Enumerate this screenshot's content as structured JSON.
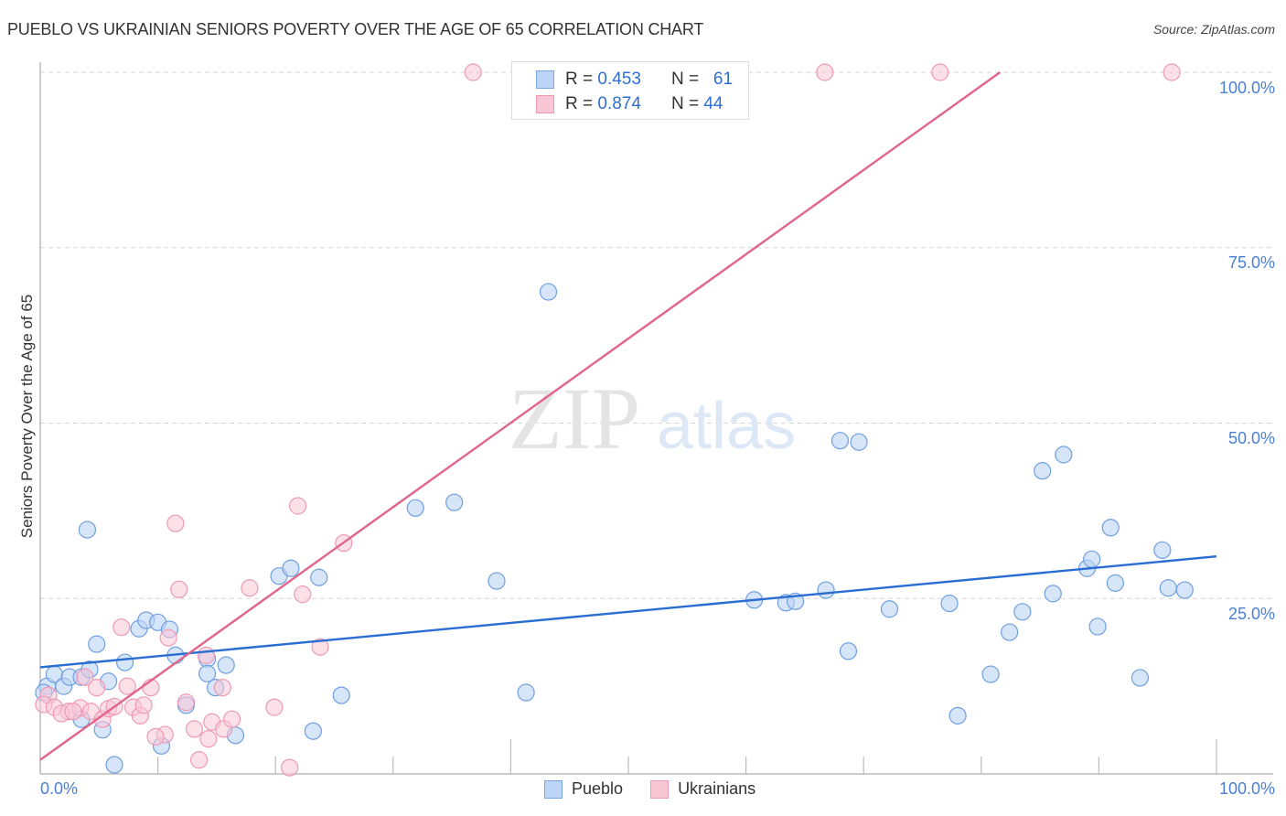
{
  "header": {
    "title": "PUEBLO VS UKRAINIAN SENIORS POVERTY OVER THE AGE OF 65 CORRELATION CHART",
    "source": "Source: ZipAtlas.com"
  },
  "watermark": {
    "zip": "ZIP",
    "atlas": "atlas"
  },
  "legend_top": {
    "rows": [
      {
        "series": "Pueblo",
        "r_label": "R =",
        "r_value": "0.453",
        "n_label": "N =",
        "n_value": "61",
        "color": "#bcd4f5"
      },
      {
        "series": "Ukrainians",
        "r_label": "R =",
        "r_value": "0.874",
        "n_label": "N =",
        "n_value": "44",
        "color": "#f9c6d6"
      }
    ]
  },
  "legend_bottom": {
    "items": [
      {
        "label": "Pueblo",
        "color": "#bcd4f5"
      },
      {
        "label": "Ukrainians",
        "color": "#f9c6d6"
      }
    ]
  },
  "axes": {
    "ylabel": "Seniors Poverty Over the Age of 65",
    "y_ticks": [
      "100.0%",
      "75.0%",
      "50.0%",
      "25.0%"
    ],
    "x_ticks": [
      "0.0%",
      "100.0%"
    ]
  },
  "colors": {
    "pueblo_fill": "#bcd4f5",
    "pueblo_stroke": "#6f9fe0",
    "pueblo_line": "#2a6dd2",
    "ukrainians_fill": "#f9c6d6",
    "ukrainians_stroke": "#ee9ab5",
    "ukrainians_line": "#e0648c",
    "tick_label": "#4a7fd4"
  },
  "chart_data": {
    "type": "scatter",
    "title": "PUEBLO VS UKRAINIAN SENIORS POVERTY OVER THE AGE OF 65 CORRELATION CHART",
    "xlabel": "",
    "ylabel": "Seniors Poverty Over the Age of 65",
    "xlim": [
      0,
      100
    ],
    "ylim": [
      0,
      100
    ],
    "x_tick_labels": [
      "0.0%",
      "100.0%"
    ],
    "y_tick_labels": [
      "25.0%",
      "50.0%",
      "75.0%",
      "100.0%"
    ],
    "grid": "horizontal dashed at 25/50/75/100",
    "legend_position": "top-center and bottom-center",
    "series": [
      {
        "name": "Pueblo",
        "r": 0.453,
        "n": 61,
        "trend": {
          "x": [
            0,
            100
          ],
          "y": [
            15.2,
            31.0
          ]
        },
        "points": [
          [
            4.0,
            34.8
          ],
          [
            4.8,
            18.5
          ],
          [
            0.6,
            12.5
          ],
          [
            1.2,
            14.2
          ],
          [
            2.0,
            12.5
          ],
          [
            2.5,
            13.8
          ],
          [
            3.5,
            13.8
          ],
          [
            4.2,
            14.9
          ],
          [
            3.5,
            7.8
          ],
          [
            5.3,
            6.3
          ],
          [
            5.8,
            13.2
          ],
          [
            7.2,
            15.9
          ],
          [
            6.3,
            1.3
          ],
          [
            8.4,
            20.7
          ],
          [
            9.0,
            21.9
          ],
          [
            10.0,
            21.6
          ],
          [
            11.0,
            20.6
          ],
          [
            11.5,
            16.9
          ],
          [
            10.3,
            4.0
          ],
          [
            12.4,
            9.8
          ],
          [
            14.2,
            16.4
          ],
          [
            14.2,
            14.3
          ],
          [
            14.9,
            12.3
          ],
          [
            15.8,
            15.5
          ],
          [
            16.6,
            5.5
          ],
          [
            20.3,
            28.2
          ],
          [
            21.3,
            29.3
          ],
          [
            23.7,
            28.0
          ],
          [
            23.2,
            6.1
          ],
          [
            25.6,
            11.2
          ],
          [
            31.9,
            37.9
          ],
          [
            35.2,
            38.7
          ],
          [
            38.8,
            27.5
          ],
          [
            41.3,
            11.6
          ],
          [
            43.2,
            68.7
          ],
          [
            60.7,
            24.8
          ],
          [
            63.4,
            24.4
          ],
          [
            64.2,
            24.6
          ],
          [
            66.8,
            26.2
          ],
          [
            68.7,
            17.5
          ],
          [
            68.0,
            47.5
          ],
          [
            69.6,
            47.3
          ],
          [
            72.2,
            23.5
          ],
          [
            77.3,
            24.3
          ],
          [
            78.0,
            8.3
          ],
          [
            80.8,
            14.2
          ],
          [
            82.4,
            20.2
          ],
          [
            83.5,
            23.1
          ],
          [
            85.2,
            43.2
          ],
          [
            87.0,
            45.5
          ],
          [
            86.1,
            25.7
          ],
          [
            89.0,
            29.3
          ],
          [
            89.4,
            30.6
          ],
          [
            91.0,
            35.1
          ],
          [
            89.9,
            21.0
          ],
          [
            91.4,
            27.2
          ],
          [
            93.5,
            13.7
          ],
          [
            95.4,
            31.9
          ],
          [
            95.9,
            26.5
          ],
          [
            97.3,
            26.2
          ],
          [
            0.3,
            11.6
          ]
        ]
      },
      {
        "name": "Ukrainians",
        "r": 0.874,
        "n": 44,
        "trend": {
          "x": [
            0,
            81.6
          ],
          "y": [
            2.0,
            100
          ]
        },
        "points": [
          [
            36.8,
            100
          ],
          [
            66.7,
            100
          ],
          [
            76.5,
            100
          ],
          [
            96.2,
            100
          ],
          [
            11.5,
            35.7
          ],
          [
            11.8,
            26.3
          ],
          [
            21.9,
            38.2
          ],
          [
            25.8,
            32.9
          ],
          [
            17.8,
            26.5
          ],
          [
            22.3,
            25.6
          ],
          [
            23.8,
            18.1
          ],
          [
            6.9,
            20.9
          ],
          [
            10.9,
            19.4
          ],
          [
            14.1,
            16.9
          ],
          [
            15.5,
            12.3
          ],
          [
            3.8,
            13.8
          ],
          [
            4.8,
            12.3
          ],
          [
            7.4,
            12.5
          ],
          [
            9.4,
            12.3
          ],
          [
            0.7,
            11.2
          ],
          [
            0.3,
            9.9
          ],
          [
            1.2,
            9.5
          ],
          [
            2.4,
            8.9
          ],
          [
            1.8,
            8.6
          ],
          [
            3.4,
            9.4
          ],
          [
            4.3,
            8.9
          ],
          [
            5.3,
            7.8
          ],
          [
            5.8,
            9.3
          ],
          [
            6.3,
            9.6
          ],
          [
            7.9,
            9.5
          ],
          [
            8.5,
            8.3
          ],
          [
            8.8,
            9.8
          ],
          [
            12.4,
            10.2
          ],
          [
            10.6,
            5.6
          ],
          [
            9.8,
            5.3
          ],
          [
            13.1,
            6.4
          ],
          [
            14.6,
            7.4
          ],
          [
            15.6,
            6.4
          ],
          [
            16.3,
            7.8
          ],
          [
            14.3,
            5.0
          ],
          [
            13.5,
            2.0
          ],
          [
            19.9,
            9.5
          ],
          [
            21.2,
            0.9
          ],
          [
            2.8,
            8.9
          ]
        ]
      }
    ]
  }
}
